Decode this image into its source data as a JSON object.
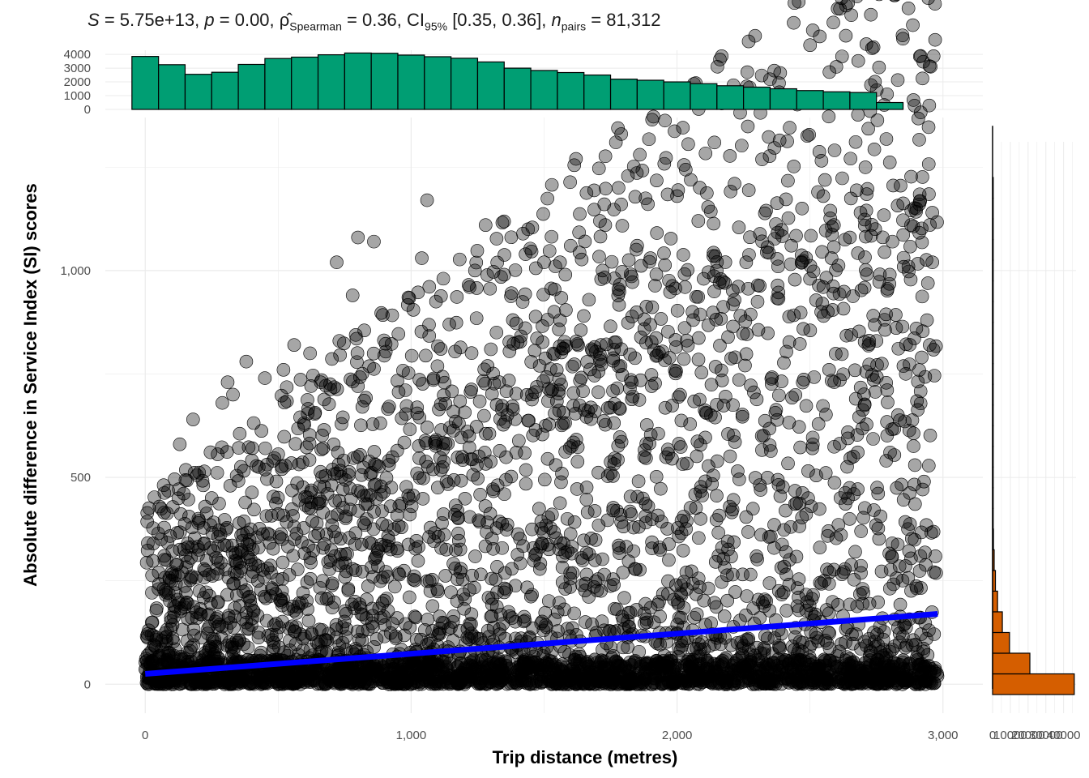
{
  "subtitle": {
    "S_label": "S",
    "S_value": "= 5.75e+13,",
    "p_label": "p",
    "p_value": "= 0.00,",
    "rho_symbol": "ρ̂",
    "rho_sub": "Spearman",
    "rho_value": "= 0.36,",
    "ci_label": "CI",
    "ci_sub": "95%",
    "ci_value": "[0.35, 0.36],",
    "n_label": "n",
    "n_sub": "pairs",
    "n_value": "= 81,312"
  },
  "colors": {
    "points": "#000000",
    "trend_line": "#0000FF",
    "top_histogram": "#009E73",
    "right_histogram": "#D55E00",
    "grid": "#EBEBEB"
  },
  "chart_data": [
    {
      "type": "scatter",
      "xlabel": "Trip distance (metres)",
      "ylabel": "Absolute difference in Service Index (SI) scores",
      "xlim": [
        -150,
        3150
      ],
      "ylim": [
        -70,
        1370
      ],
      "x_ticks": [
        0,
        1000,
        2000,
        3000
      ],
      "x_tick_labels": [
        "0",
        "1,000",
        "2,000",
        "3,000"
      ],
      "y_ticks": [
        0,
        500,
        1000
      ],
      "y_tick_labels": [
        "0",
        "500",
        "1,000"
      ],
      "grid": true,
      "trend_line": {
        "x": [
          0,
          2980
        ],
        "y": [
          25,
          170
        ]
      },
      "outliers": [
        [
          1790,
          1330
        ],
        [
          1770,
          1310
        ],
        [
          1620,
          1270
        ],
        [
          1860,
          1280
        ],
        [
          1780,
          1200
        ],
        [
          1060,
          1170
        ],
        [
          1790,
          1160
        ],
        [
          2000,
          1180
        ],
        [
          2530,
          1190
        ],
        [
          2550,
          1180
        ],
        [
          2470,
          1150
        ],
        [
          2900,
          1150
        ],
        [
          2960,
          1140
        ],
        [
          2690,
          1140
        ],
        [
          1710,
          1120
        ],
        [
          1730,
          1110
        ],
        [
          1280,
          1110
        ],
        [
          1440,
          1100
        ],
        [
          2880,
          1110
        ],
        [
          2590,
          1110
        ],
        [
          2080,
          1120
        ],
        [
          800,
          1080
        ],
        [
          860,
          1070
        ],
        [
          2650,
          1080
        ],
        [
          2810,
          1070
        ],
        [
          1600,
          1060
        ],
        [
          1850,
          1060
        ],
        [
          2960,
          1020
        ],
        [
          2260,
          1020
        ],
        [
          2430,
          1060
        ],
        [
          1040,
          1030
        ],
        [
          720,
          1020
        ],
        [
          2380,
          1010
        ],
        [
          1900,
          1030
        ],
        [
          1500,
          1020
        ],
        [
          1560,
          1020
        ],
        [
          1580,
          990
        ],
        [
          1240,
          1000
        ],
        [
          1720,
          1000
        ],
        [
          2870,
          1010
        ],
        [
          1350,
          990
        ],
        [
          2800,
          990
        ],
        [
          1220,
          960
        ],
        [
          2100,
          980
        ],
        [
          2180,
          970
        ],
        [
          780,
          940
        ],
        [
          2030,
          960
        ],
        [
          2160,
          970
        ],
        [
          2500,
          980
        ],
        [
          2550,
          960
        ],
        [
          310,
          730
        ],
        [
          330,
          700
        ],
        [
          180,
          640
        ],
        [
          450,
          740
        ],
        [
          290,
          680
        ],
        [
          130,
          580
        ],
        [
          30,
          340
        ],
        [
          80,
          300
        ],
        [
          120,
          290
        ],
        [
          250,
          450
        ],
        [
          200,
          400
        ],
        [
          50,
          230
        ],
        [
          100,
          250
        ],
        [
          160,
          340
        ],
        [
          380,
          780
        ],
        [
          520,
          760
        ],
        [
          620,
          800
        ],
        [
          660,
          730
        ],
        [
          560,
          820
        ],
        [
          730,
          830
        ],
        [
          2940,
          880
        ],
        [
          2900,
          860
        ],
        [
          2950,
          820
        ],
        [
          2920,
          790
        ],
        [
          2750,
          830
        ]
      ]
    },
    {
      "type": "bar",
      "title": "",
      "orientation": "vertical",
      "bin_width": 100,
      "bin_start": -50,
      "ylim": [
        0,
        4300
      ],
      "y_ticks": [
        0,
        1000,
        2000,
        3000,
        4000
      ],
      "y_tick_labels": [
        "0",
        "1000",
        "2000",
        "3000",
        "4000"
      ],
      "values": [
        3850,
        3250,
        2550,
        2700,
        3270,
        3700,
        3800,
        3970,
        4100,
        4080,
        3950,
        3830,
        3720,
        3450,
        3000,
        2830,
        2680,
        2500,
        2200,
        2120,
        2000,
        1870,
        1720,
        1620,
        1500,
        1370,
        1280,
        1230,
        500
      ]
    },
    {
      "type": "bar",
      "title": "",
      "orientation": "horizontal",
      "bin_width": 50,
      "bin_start": -25,
      "xlim": [
        0,
        47000
      ],
      "x_ticks": [
        0,
        10000,
        20000,
        30000,
        40000
      ],
      "x_tick_labels": [
        "0",
        "10000",
        "20000",
        "30000",
        "40000"
      ],
      "values": [
        46000,
        21000,
        9500,
        5500,
        2800,
        1600,
        900,
        500,
        300,
        180,
        110,
        70,
        45,
        30,
        20,
        14,
        10,
        7,
        5,
        4,
        3,
        2,
        2,
        1,
        1
      ]
    }
  ]
}
